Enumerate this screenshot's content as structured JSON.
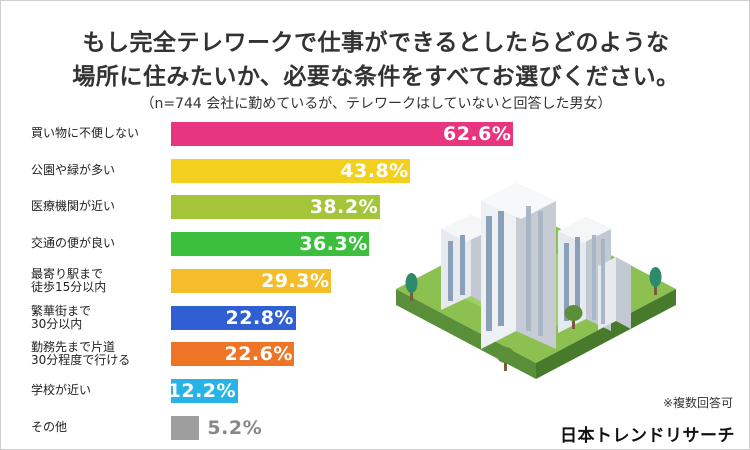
{
  "title_line1": "もし完全テレワークで仕事ができるとしたらどのような",
  "title_line2": "場所に住みたいか、必要な条件をすべてお選びください。",
  "subtitle": "（n=744 会社に勤めているが、テレワークはしていないと回答した男女）",
  "note": "※複数回答可",
  "brand": "日本トレンドリサーチ",
  "chart_data": {
    "type": "bar",
    "orientation": "horizontal",
    "unit": "%",
    "categories": [
      "買い物に不便しない",
      "公園や緑が多い",
      "医療機関が近い",
      "交通の便が良い",
      "最寄り駅まで\n徒歩15分以内",
      "繁華街まで\n30分以内",
      "勤務先まで片道\n30分程度で行ける",
      "学校が近い",
      "その他"
    ],
    "values": [
      62.6,
      43.8,
      38.2,
      36.3,
      29.3,
      22.8,
      22.6,
      12.2,
      5.2
    ],
    "labels": [
      "62.6%",
      "43.8%",
      "38.2%",
      "36.3%",
      "29.3%",
      "22.8%",
      "22.6%",
      "12.2%",
      "5.2%"
    ],
    "colors": [
      "#e8357f",
      "#f3cf1e",
      "#a4c53a",
      "#3cbf3c",
      "#f5bd2a",
      "#2f5fd3",
      "#ee7426",
      "#28b3e6",
      "#9e9e9e"
    ]
  }
}
